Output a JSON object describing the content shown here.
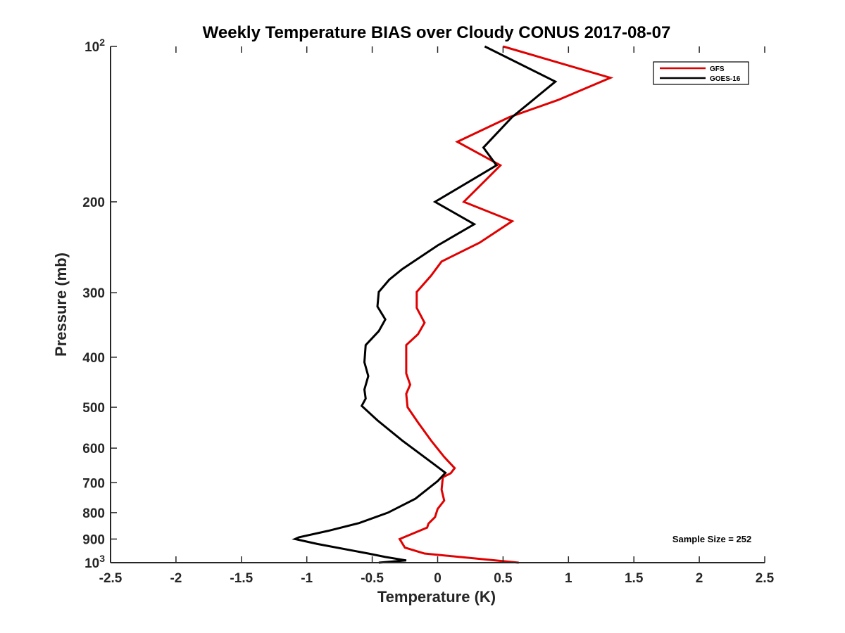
{
  "chart_data": {
    "type": "line",
    "title": "Weekly Temperature BIAS over Cloudy CONUS 2017-08-07",
    "xlabel": "Temperature (K)",
    "ylabel": "Pressure (mb)",
    "xlim": [
      -2.5,
      2.5
    ],
    "ylim": [
      1000,
      100
    ],
    "y_scale": "log",
    "y_reversed": true,
    "xticks": [
      "-2.5",
      "-2",
      "-1.5",
      "-1",
      "-0.5",
      "0",
      "0.5",
      "1",
      "1.5",
      "2",
      "2.5"
    ],
    "yticks": [
      {
        "value": 100,
        "base": "10",
        "exp": "2"
      },
      {
        "value": 200,
        "label": "200"
      },
      {
        "value": 300,
        "label": "300"
      },
      {
        "value": 400,
        "label": "400"
      },
      {
        "value": 500,
        "label": "500"
      },
      {
        "value": 600,
        "label": "600"
      },
      {
        "value": 700,
        "label": "700"
      },
      {
        "value": 800,
        "label": "800"
      },
      {
        "value": 900,
        "label": "900"
      },
      {
        "value": 1000,
        "base": "10",
        "exp": "3"
      }
    ],
    "legend_position": "top-right",
    "grid": false,
    "annotation": "Sample Size = 252",
    "series": [
      {
        "name": "GFS",
        "color": "#e00000",
        "points": [
          [
            0.5,
            100
          ],
          [
            1.32,
            115
          ],
          [
            0.92,
            127
          ],
          [
            0.55,
            137
          ],
          [
            0.15,
            153
          ],
          [
            0.48,
            170
          ],
          [
            0.2,
            200
          ],
          [
            0.57,
            218
          ],
          [
            0.32,
            240
          ],
          [
            0.03,
            261
          ],
          [
            -0.05,
            278
          ],
          [
            -0.16,
            299
          ],
          [
            -0.16,
            321
          ],
          [
            -0.1,
            343
          ],
          [
            -0.15,
            361
          ],
          [
            -0.24,
            379
          ],
          [
            -0.24,
            410
          ],
          [
            -0.24,
            430
          ],
          [
            -0.21,
            452
          ],
          [
            -0.24,
            471
          ],
          [
            -0.23,
            500
          ],
          [
            -0.15,
            535
          ],
          [
            -0.05,
            580
          ],
          [
            0.05,
            624
          ],
          [
            0.13,
            656
          ],
          [
            0.1,
            671
          ],
          [
            0.04,
            683
          ],
          [
            0.03,
            722
          ],
          [
            0.05,
            758
          ],
          [
            0.0,
            787
          ],
          [
            -0.02,
            816
          ],
          [
            -0.07,
            840
          ],
          [
            -0.08,
            855
          ],
          [
            -0.29,
            900
          ],
          [
            -0.25,
            935
          ],
          [
            -0.1,
            960
          ],
          [
            0.62,
            1000
          ]
        ]
      },
      {
        "name": "GOES-16",
        "color": "#000000",
        "points": [
          [
            0.36,
            100
          ],
          [
            0.9,
            117
          ],
          [
            0.57,
            137
          ],
          [
            0.35,
            157
          ],
          [
            0.45,
            170
          ],
          [
            -0.02,
            200
          ],
          [
            0.28,
            221
          ],
          [
            0.0,
            243
          ],
          [
            -0.27,
            270
          ],
          [
            -0.37,
            283
          ],
          [
            -0.45,
            299
          ],
          [
            -0.46,
            319
          ],
          [
            -0.4,
            338
          ],
          [
            -0.45,
            356
          ],
          [
            -0.55,
            379
          ],
          [
            -0.56,
            409
          ],
          [
            -0.53,
            435
          ],
          [
            -0.56,
            462
          ],
          [
            -0.55,
            481
          ],
          [
            -0.58,
            497
          ],
          [
            -0.46,
            530
          ],
          [
            -0.27,
            580
          ],
          [
            -0.03,
            644
          ],
          [
            0.06,
            670
          ],
          [
            0.0,
            695
          ],
          [
            -0.17,
            752
          ],
          [
            -0.38,
            800
          ],
          [
            -0.6,
            838
          ],
          [
            -0.84,
            868
          ],
          [
            -1.06,
            893
          ],
          [
            -1.09,
            900
          ],
          [
            -0.92,
            920
          ],
          [
            -0.53,
            960
          ],
          [
            -0.4,
            975
          ],
          [
            -0.24,
            990
          ],
          [
            -0.45,
            1000
          ]
        ]
      }
    ]
  }
}
